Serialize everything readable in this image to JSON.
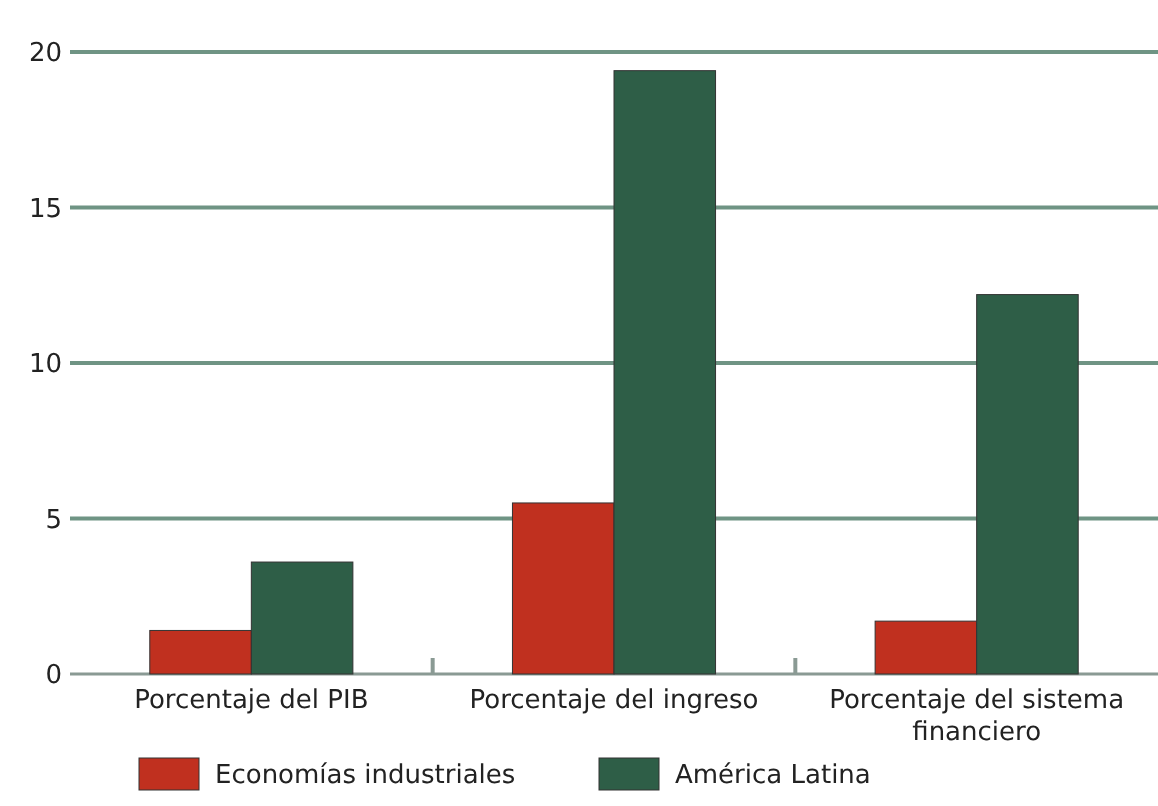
{
  "chart_data": {
    "type": "bar",
    "categories": [
      "Porcentaje del PIB",
      "Porcentaje del ingreso",
      "Porcentaje del sistema financiero"
    ],
    "series": [
      {
        "name": "Economías industriales",
        "color": "#c0301f",
        "values": [
          1.4,
          5.5,
          1.7
        ]
      },
      {
        "name": "América Latina",
        "color": "#2e5e47",
        "values": [
          3.6,
          19.4,
          12.2
        ]
      }
    ],
    "ylim": [
      0,
      20
    ],
    "yticks": [
      0,
      5,
      10,
      15,
      20
    ],
    "grid": "y",
    "legend": "bottom"
  }
}
